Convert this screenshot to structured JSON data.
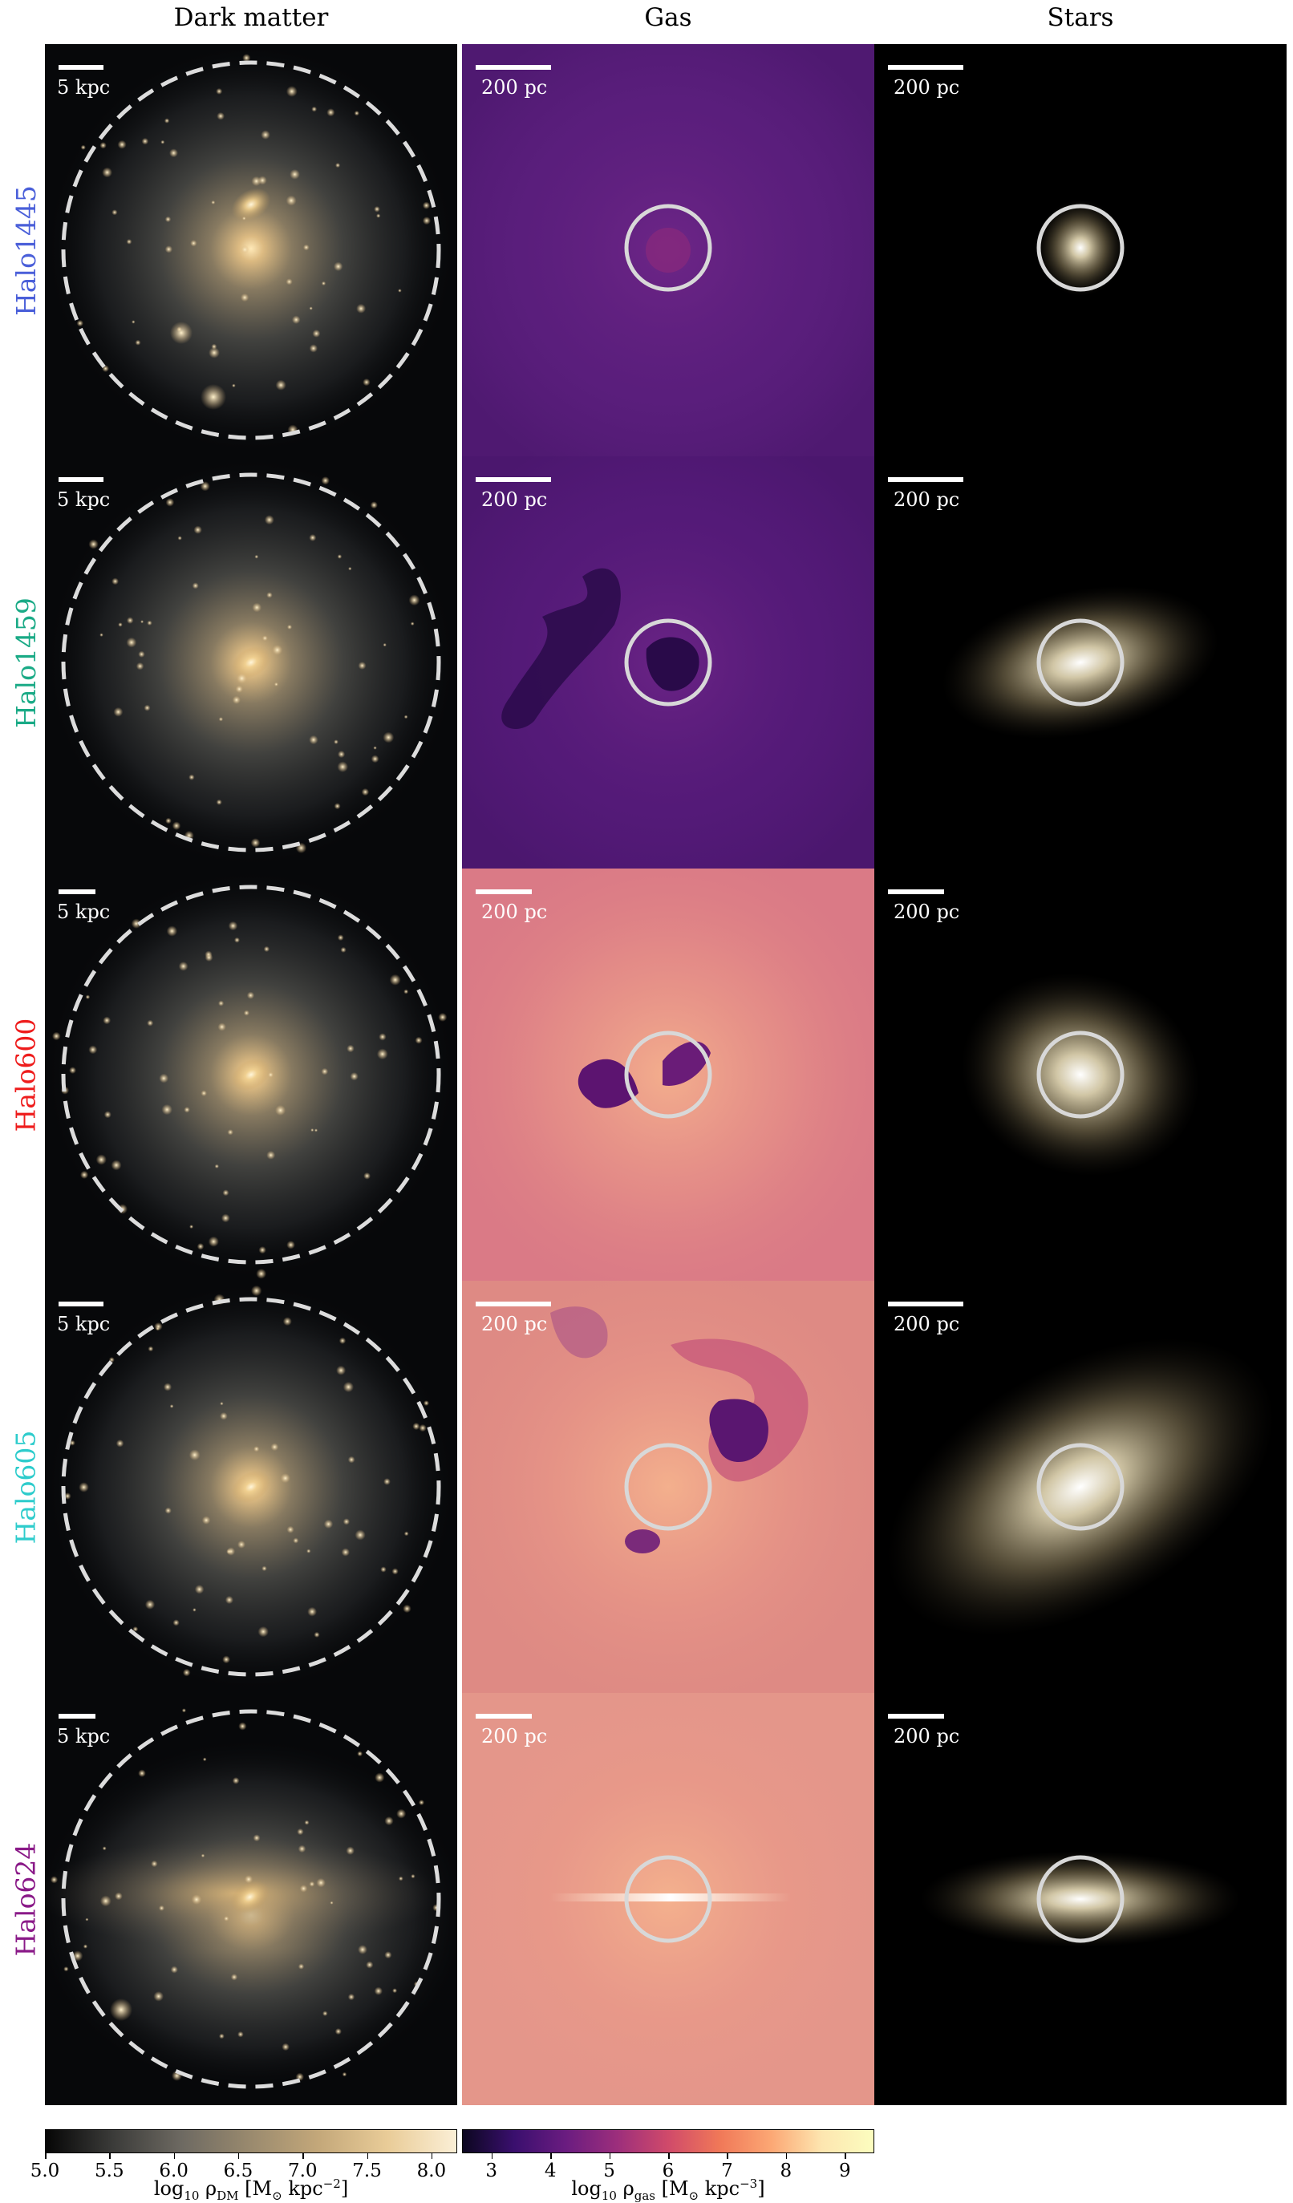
{
  "columns": [
    {
      "key": "dm",
      "title": "Dark matter",
      "scale_label": "5 kpc"
    },
    {
      "key": "gas",
      "title": "Gas",
      "scale_label": "200 pc"
    },
    {
      "key": "stars",
      "title": "Stars",
      "scale_label": "200 pc"
    }
  ],
  "rows": [
    {
      "name": "Halo1445",
      "color": "#4a5fd9",
      "gas_tone": "#5a1e7c",
      "gas_variant": "plain",
      "star_shape": "compact"
    },
    {
      "name": "Halo1459",
      "color": "#1aaa86",
      "gas_tone": "#541a78",
      "gas_variant": "dark_clumps",
      "star_shape": "elongated"
    },
    {
      "name": "Halo600",
      "color": "#ee1c1c",
      "gas_tone": "#da7a86",
      "gas_variant": "warm_clump",
      "star_shape": "blob"
    },
    {
      "name": "Halo605",
      "color": "#2ecccc",
      "gas_tone": "#de8a84",
      "gas_variant": "warm_complex",
      "star_shape": "large_elongated"
    },
    {
      "name": "Halo624",
      "color": "#8a1a88",
      "gas_tone": "#e4968a",
      "gas_variant": "warm_disk",
      "star_shape": "flat_disk"
    }
  ],
  "colorbars": [
    {
      "name": "dark-matter-colorbar",
      "colormap": "grey-to-cream",
      "range": [
        5.0,
        8.2
      ],
      "ticks": [
        "5.0",
        "5.5",
        "6.0",
        "6.5",
        "7.0",
        "7.5",
        "8.0"
      ],
      "label_main": "log",
      "label_sub": "10",
      "label_sym": " ρ",
      "label_symsub": "DM",
      "label_units": " [M",
      "label_sun": "⊙",
      "label_units2": " kpc",
      "label_exp": "−2",
      "label_close": "]"
    },
    {
      "name": "gas-colorbar",
      "colormap": "magma",
      "range": [
        2.5,
        9.5
      ],
      "ticks": [
        "3",
        "4",
        "5",
        "6",
        "7",
        "8",
        "9"
      ],
      "label_main": "log",
      "label_sub": "10",
      "label_sym": " ρ",
      "label_symsub": "gas",
      "label_units": " [M",
      "label_sun": "⊙",
      "label_units2": " kpc",
      "label_exp": "−3",
      "label_close": "]"
    }
  ]
}
